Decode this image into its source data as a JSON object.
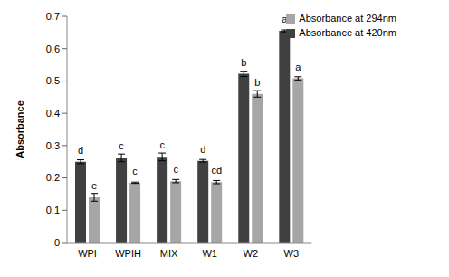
{
  "chart_data": {
    "type": "bar",
    "categories": [
      "WPI",
      "WPIH",
      "MIX",
      "W1",
      "W2",
      "W3"
    ],
    "series": [
      {
        "name": "Absorbance at 420nm",
        "color": "#404040",
        "values": [
          0.25,
          0.262,
          0.265,
          0.253,
          0.522,
          0.655
        ],
        "errors": [
          0.006,
          0.012,
          0.012,
          0.004,
          0.008,
          0.003
        ],
        "annotations": [
          "d",
          "c",
          "c",
          "d",
          "b",
          "a"
        ]
      },
      {
        "name": "Absorbance at 294nm",
        "color": "#a6a6a6",
        "values": [
          0.14,
          0.185,
          0.19,
          0.187,
          0.46,
          0.508
        ],
        "errors": [
          0.012,
          0.002,
          0.005,
          0.005,
          0.01,
          0.005
        ],
        "annotations": [
          "e",
          "c",
          "c",
          "cd",
          "b",
          "a"
        ]
      }
    ],
    "y_label": "Absorbance",
    "ylim": [
      0,
      0.7
    ],
    "yticks": [
      0,
      0.1,
      0.2,
      0.3,
      0.4,
      0.5,
      0.6,
      0.7
    ],
    "grid": false,
    "legend": "upper right"
  }
}
